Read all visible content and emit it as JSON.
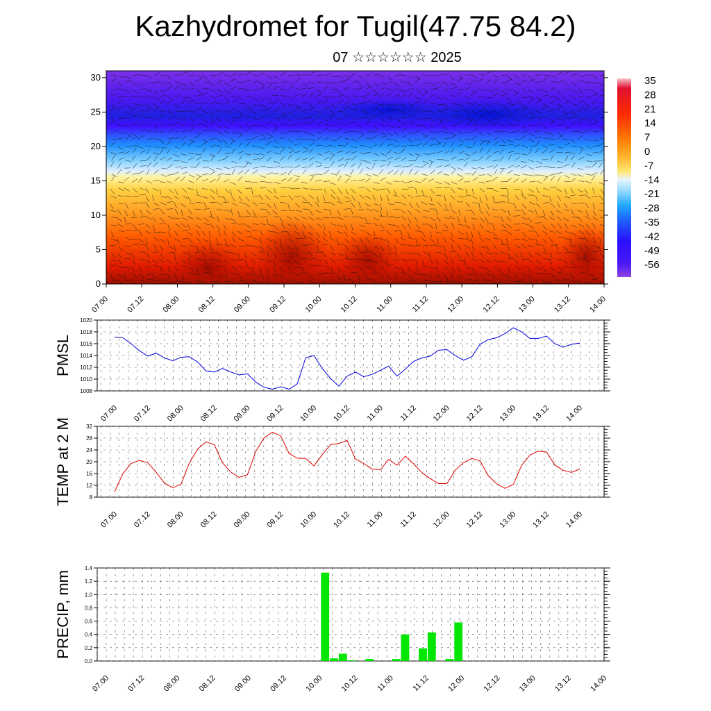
{
  "title": "Kazhydromet for Tugil(47.75 84.2)",
  "subtitle": "07 ☆☆☆☆☆☆ 2025",
  "x_ticks": [
    "07.00",
    "07.12",
    "08.00",
    "08.12",
    "09.00",
    "09.12",
    "10.00",
    "10.12",
    "11.00",
    "11.12",
    "12.00",
    "12.12",
    "13.00",
    "13.12",
    "14.00"
  ],
  "chart_data": [
    {
      "type": "heatmap",
      "title": "",
      "ylabel": "",
      "ylim": [
        0,
        31
      ],
      "yticks": [
        0,
        5,
        10,
        15,
        20,
        25,
        30
      ],
      "colorbar_labels": [
        "35",
        "28",
        "21",
        "14",
        "7",
        "0",
        "-7",
        "-14",
        "-21",
        "-28",
        "-35",
        "-42",
        "-49",
        "-56"
      ],
      "colorbar_values": [
        35,
        28,
        21,
        14,
        7,
        0,
        -7,
        -14,
        -21,
        -28,
        -35,
        -42,
        -49,
        -56
      ],
      "note_field": "temperature cross-section with wind barbs"
    },
    {
      "type": "line",
      "ylabel": "PMSL",
      "ylim": [
        1008,
        1020
      ],
      "yticks": [
        1008,
        1010,
        1012,
        1014,
        1016,
        1018,
        1020
      ],
      "color": "#0000dd",
      "x": [
        "07.00",
        "07.03",
        "07.06",
        "07.09",
        "07.12",
        "07.15",
        "07.18",
        "07.21",
        "08.00",
        "08.03",
        "08.06",
        "08.09",
        "08.12",
        "08.15",
        "08.18",
        "08.21",
        "09.00",
        "09.03",
        "09.06",
        "09.09",
        "09.12",
        "09.15",
        "09.18",
        "09.21",
        "10.00",
        "10.03",
        "10.06",
        "10.09",
        "10.12",
        "10.15",
        "10.18",
        "10.21",
        "11.00",
        "11.03",
        "11.06",
        "11.09",
        "11.12",
        "11.15",
        "11.18",
        "11.21",
        "12.00",
        "12.03",
        "12.06",
        "12.09",
        "12.12",
        "12.15",
        "12.18",
        "12.21",
        "13.00",
        "13.03",
        "13.06",
        "13.09",
        "13.12",
        "13.15",
        "13.18",
        "13.21",
        "14.00"
      ],
      "values": [
        1017.1,
        1017.0,
        1016.0,
        1014.8,
        1013.9,
        1014.4,
        1013.6,
        1013.1,
        1013.7,
        1013.8,
        1012.9,
        1011.4,
        1011.2,
        1011.8,
        1011.2,
        1010.7,
        1010.9,
        1009.5,
        1008.6,
        1008.3,
        1008.7,
        1008.3,
        1009.2,
        1013.6,
        1014.0,
        1011.8,
        1010.1,
        1008.8,
        1010.5,
        1011.2,
        1010.4,
        1010.8,
        1011.5,
        1012.2,
        1010.5,
        1011.7,
        1013.0,
        1013.6,
        1013.9,
        1014.9,
        1015.0,
        1014.0,
        1013.2,
        1013.8,
        1015.9,
        1016.7,
        1017.0,
        1017.7,
        1018.7,
        1018.0,
        1016.9,
        1016.9,
        1017.3,
        1016.0,
        1015.4,
        1015.9,
        1016.1
      ]
    },
    {
      "type": "line",
      "ylabel": "TEMP at 2 M",
      "ylim": [
        8,
        32
      ],
      "yticks": [
        8,
        12,
        16,
        20,
        24,
        28,
        32
      ],
      "color": "#dd0000",
      "x": [
        "07.00",
        "07.03",
        "07.06",
        "07.09",
        "07.12",
        "07.15",
        "07.18",
        "07.21",
        "08.00",
        "08.03",
        "08.06",
        "08.09",
        "08.12",
        "08.15",
        "08.18",
        "08.21",
        "09.00",
        "09.03",
        "09.06",
        "09.09",
        "09.12",
        "09.15",
        "09.18",
        "09.21",
        "10.00",
        "10.03",
        "10.06",
        "10.09",
        "10.12",
        "10.15",
        "10.18",
        "10.21",
        "11.00",
        "11.03",
        "11.06",
        "11.09",
        "11.12",
        "11.15",
        "11.18",
        "11.21",
        "12.00",
        "12.03",
        "12.06",
        "12.09",
        "12.12",
        "12.15",
        "12.18",
        "12.21",
        "13.00",
        "13.03",
        "13.06",
        "13.09",
        "13.12",
        "13.15",
        "13.18",
        "13.21",
        "14.00"
      ],
      "values": [
        9.8,
        16.0,
        19.4,
        20.5,
        19.6,
        16.5,
        12.8,
        11.2,
        12.4,
        19.6,
        24.3,
        26.7,
        25.8,
        19.6,
        16.5,
        14.7,
        15.6,
        23.5,
        28.1,
        30.0,
        28.8,
        22.8,
        21.2,
        21.1,
        18.6,
        22.4,
        25.8,
        26.2,
        27.2,
        20.9,
        19.4,
        17.5,
        17.3,
        20.8,
        18.8,
        21.9,
        19.3,
        16.3,
        14.3,
        12.6,
        12.6,
        17.1,
        19.7,
        21.1,
        20.3,
        15.2,
        12.5,
        11.0,
        12.3,
        18.8,
        22.2,
        23.6,
        23.3,
        18.9,
        17.1,
        16.4,
        17.5
      ]
    },
    {
      "type": "bar",
      "ylabel": "PRECIP, mm",
      "ylim": [
        0,
        1.4
      ],
      "yticks": [
        "0.0",
        "0.2",
        "0.4",
        "0.6",
        "0.8",
        "1.0",
        "1.2",
        "1.4"
      ],
      "color": "#00e600",
      "bars": [
        {
          "x": "10.00",
          "value": 1.33
        },
        {
          "x": "10.03",
          "value": 0.04
        },
        {
          "x": "10.06",
          "value": 0.11
        },
        {
          "x": "10.09",
          "value": 0.01
        },
        {
          "x": "10.15",
          "value": 0.03
        },
        {
          "x": "11.00",
          "value": 0.03
        },
        {
          "x": "11.03",
          "value": 0.4
        },
        {
          "x": "11.09",
          "value": 0.19
        },
        {
          "x": "11.12",
          "value": 0.43
        },
        {
          "x": "11.18",
          "value": 0.03
        },
        {
          "x": "11.21",
          "value": 0.58
        }
      ]
    }
  ]
}
